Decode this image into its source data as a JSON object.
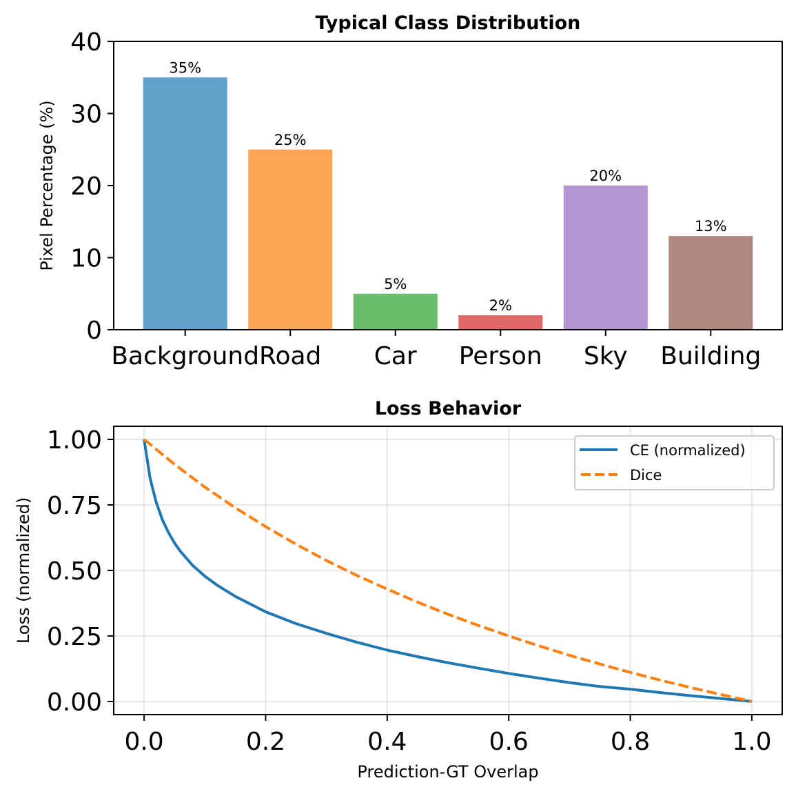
{
  "chart_data": [
    {
      "type": "bar",
      "title": "Typical Class Distribution",
      "xlabel": "",
      "ylabel": "Pixel Percentage (%)",
      "categories": [
        "Background",
        "Road",
        "Car",
        "Person",
        "Sky",
        "Building"
      ],
      "values": [
        35,
        25,
        5,
        2,
        20,
        13
      ],
      "bar_labels": [
        "35%",
        "25%",
        "5%",
        "2%",
        "20%",
        "13%"
      ],
      "colors": [
        "#1f77b4",
        "#ff7f0e",
        "#2ca02c",
        "#d62728",
        "#9467bd",
        "#8c564b"
      ],
      "alpha": 0.7,
      "ylim": [
        0,
        40
      ],
      "yticks": [
        0,
        10,
        20,
        30,
        40
      ],
      "ytick_labels": [
        "0",
        "10",
        "20",
        "30",
        "40"
      ],
      "grid": false
    },
    {
      "type": "line",
      "title": "Loss Behavior",
      "xlabel": "Prediction-GT Overlap",
      "ylabel": "Loss (normalized)",
      "xlim": [
        -0.05,
        1.05
      ],
      "ylim": [
        -0.05,
        1.05
      ],
      "xticks": [
        0.0,
        0.2,
        0.4,
        0.6,
        0.8,
        1.0
      ],
      "xtick_labels": [
        "0.0",
        "0.2",
        "0.4",
        "0.6",
        "0.8",
        "1.0"
      ],
      "yticks": [
        0.0,
        0.25,
        0.5,
        0.75,
        1.0
      ],
      "ytick_labels": [
        "0.00",
        "0.25",
        "0.50",
        "0.75",
        "1.00"
      ],
      "grid": true,
      "legend_position": "top-right",
      "series": [
        {
          "name": "CE (normalized)",
          "color": "#1f77b4",
          "style": "solid",
          "x": [
            0.0,
            0.01,
            0.02,
            0.03,
            0.04,
            0.05,
            0.06,
            0.08,
            0.1,
            0.12,
            0.15,
            0.2,
            0.25,
            0.3,
            0.35,
            0.4,
            0.45,
            0.5,
            0.55,
            0.6,
            0.65,
            0.7,
            0.75,
            0.8,
            0.85,
            0.9,
            0.95,
            1.0
          ],
          "y": [
            1.0,
            0.85,
            0.76,
            0.694,
            0.645,
            0.605,
            0.572,
            0.519,
            0.478,
            0.444,
            0.401,
            0.342,
            0.297,
            0.26,
            0.226,
            0.196,
            0.171,
            0.148,
            0.127,
            0.107,
            0.089,
            0.072,
            0.057,
            0.047,
            0.034,
            0.022,
            0.011,
            0.0
          ]
        },
        {
          "name": "Dice",
          "color": "#ff7f0e",
          "style": "dashed",
          "x": [
            0.0,
            0.05,
            0.1,
            0.15,
            0.2,
            0.25,
            0.3,
            0.35,
            0.4,
            0.45,
            0.5,
            0.55,
            0.6,
            0.65,
            0.7,
            0.75,
            0.8,
            0.85,
            0.9,
            0.95,
            1.0
          ],
          "y": [
            1.0,
            0.905,
            0.818,
            0.739,
            0.667,
            0.6,
            0.538,
            0.481,
            0.429,
            0.379,
            0.333,
            0.29,
            0.25,
            0.212,
            0.176,
            0.143,
            0.111,
            0.081,
            0.053,
            0.026,
            0.0
          ]
        }
      ]
    }
  ]
}
